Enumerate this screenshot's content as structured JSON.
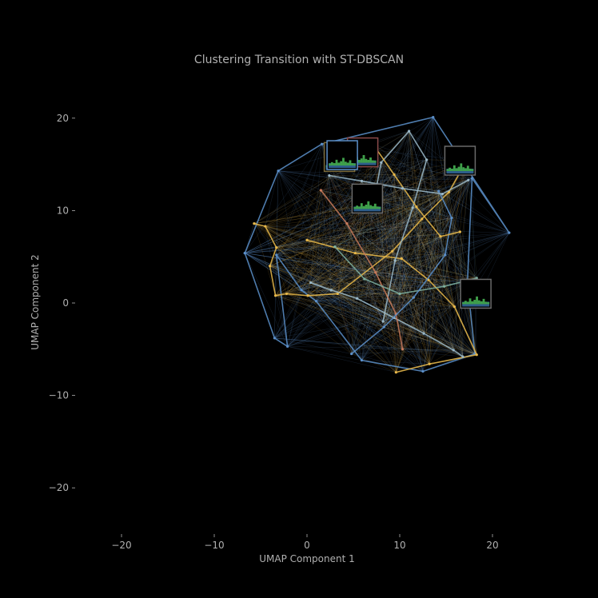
{
  "chart_data": {
    "type": "line",
    "title": "Clustering Transition with ST-DBSCAN",
    "xlabel": "UMAP Component 1",
    "ylabel": "UMAP Component 2",
    "xlim": [
      -25,
      25
    ],
    "ylim": [
      -25,
      25
    ],
    "x_ticks": [
      -20,
      -10,
      0,
      10,
      20
    ],
    "y_ticks": [
      -20,
      -10,
      0,
      10,
      20
    ],
    "x_tick_labels": [
      "−20",
      "−10",
      "0",
      "10",
      "20"
    ],
    "y_tick_labels": [
      "−20",
      "−10",
      "0",
      "10",
      "20"
    ],
    "grid": false,
    "background": "#000000",
    "series_colors": [
      "#5b8fc9",
      "#e8b84a",
      "#9ab8c8",
      "#c97a5b",
      "#7fb0a0"
    ],
    "series": [
      {
        "color": "#5b8fc9",
        "points": [
          [
            -6.7,
            5.4
          ],
          [
            -3.1,
            14.3
          ],
          [
            1.6,
            17.2
          ],
          [
            13.6,
            20.1
          ],
          [
            21.8,
            7.6
          ],
          [
            17.8,
            13.5
          ],
          [
            17.3,
            2.2
          ],
          [
            18.1,
            -5.5
          ],
          [
            12.5,
            -7.4
          ],
          [
            5.9,
            -6.2
          ],
          [
            1.0,
            0.2
          ],
          [
            -0.6,
            1.4
          ],
          [
            -3.3,
            5.2
          ],
          [
            -2.1,
            -4.7
          ],
          [
            -3.5,
            -3.8
          ],
          [
            -6.7,
            5.4
          ]
        ]
      },
      {
        "color": "#e8b84a",
        "points": [
          [
            -5.7,
            8.6
          ],
          [
            -4.5,
            8.3
          ],
          [
            -3.3,
            6.0
          ],
          [
            -4.0,
            4.0
          ],
          [
            -3.4,
            0.8
          ],
          [
            -2.2,
            1.0
          ],
          [
            0.1,
            0.8
          ],
          [
            3.3,
            1.0
          ],
          [
            9.2,
            5.6
          ],
          [
            12.4,
            9.1
          ],
          [
            15.3,
            12.0
          ],
          [
            17.2,
            15.4
          ]
        ]
      },
      {
        "color": "#e8b84a",
        "points": [
          [
            0.0,
            6.8
          ],
          [
            5.2,
            5.4
          ],
          [
            10.2,
            4.8
          ],
          [
            13.1,
            2.5
          ],
          [
            15.9,
            -0.4
          ],
          [
            18.3,
            -5.6
          ],
          [
            13.2,
            -6.6
          ],
          [
            9.6,
            -7.5
          ]
        ]
      },
      {
        "color": "#9ab8c8",
        "points": [
          [
            0.4,
            2.2
          ],
          [
            2.6,
            1.4
          ],
          [
            5.4,
            0.5
          ],
          [
            9.4,
            -1.6
          ],
          [
            12.6,
            -3.3
          ],
          [
            15.8,
            -5.1
          ],
          [
            16.8,
            -5.8
          ]
        ]
      },
      {
        "color": "#9ab8c8",
        "points": [
          [
            8.2,
            -2.0
          ],
          [
            9.5,
            4.6
          ],
          [
            11.4,
            10.3
          ],
          [
            12.9,
            15.5
          ],
          [
            11.0,
            18.6
          ],
          [
            8.0,
            15.2
          ],
          [
            7.2,
            11.0
          ]
        ]
      },
      {
        "color": "#c97a5b",
        "points": [
          [
            1.5,
            12.2
          ],
          [
            4.3,
            8.6
          ],
          [
            7.4,
            3.3
          ],
          [
            9.6,
            -1.2
          ],
          [
            10.3,
            -5.0
          ]
        ]
      },
      {
        "color": "#7fb0a0",
        "points": [
          [
            3.0,
            6.1
          ],
          [
            6.2,
            2.6
          ],
          [
            10.0,
            1.0
          ],
          [
            14.8,
            1.8
          ],
          [
            18.3,
            2.7
          ]
        ]
      },
      {
        "color": "#5b8fc9",
        "points": [
          [
            4.8,
            -5.5
          ],
          [
            8.3,
            -2.6
          ],
          [
            11.5,
            0.6
          ],
          [
            14.9,
            5.2
          ],
          [
            15.6,
            9.2
          ],
          [
            14.2,
            12.1
          ]
        ]
      },
      {
        "color": "#e8b84a",
        "points": [
          [
            7.1,
            17.2
          ],
          [
            9.4,
            13.9
          ],
          [
            11.8,
            10.4
          ],
          [
            14.4,
            7.2
          ],
          [
            16.5,
            7.7
          ]
        ]
      },
      {
        "color": "#9ab8c8",
        "points": [
          [
            2.4,
            13.8
          ],
          [
            5.9,
            13.2
          ],
          [
            10.3,
            12.4
          ],
          [
            14.6,
            11.8
          ],
          [
            17.4,
            13.3
          ]
        ]
      }
    ],
    "thumbnails": [
      {
        "x": 3.5,
        "y": 15.8,
        "border": "#7a6a3a"
      },
      {
        "x": 6.0,
        "y": 16.3,
        "border": "#8a4a4a"
      },
      {
        "x": 3.8,
        "y": 16.0,
        "border": "#5b8fc9"
      },
      {
        "x": 6.5,
        "y": 11.3,
        "border": "#6a6a6a"
      },
      {
        "x": 16.5,
        "y": 15.4,
        "border": "#6a6a6a"
      },
      {
        "x": 18.2,
        "y": 1.0,
        "border": "#6a6a6a"
      }
    ]
  }
}
